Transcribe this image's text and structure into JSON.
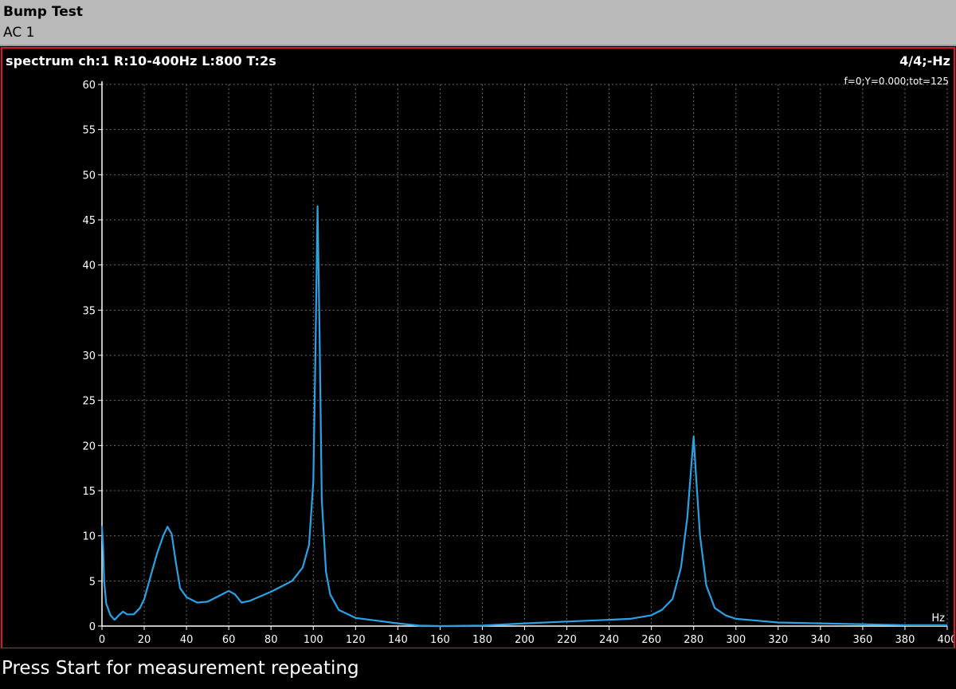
{
  "window": {
    "title": "Bump Test",
    "subtitle": "AC 1"
  },
  "panel": {
    "title": "spectrum ch:1 R:10-400Hz L:800 T:2s",
    "page_indicator": "4/4;-Hz",
    "cursor_readout": "f=0;Y=0.000;tot=125"
  },
  "status": {
    "message": "Press Start for measurement repeating"
  },
  "colors": {
    "title_bar": "#b9b9b9",
    "panel_border": "#d9182a",
    "trace": "#29a3e6",
    "grid": "#6a6a6a",
    "background": "#000000"
  },
  "chart_data": {
    "type": "line",
    "title": "",
    "xlabel": "Hz",
    "ylabel": "",
    "xlim": [
      0,
      400
    ],
    "ylim": [
      0,
      60
    ],
    "x_ticks": [
      0,
      20,
      40,
      60,
      80,
      100,
      120,
      140,
      160,
      180,
      200,
      220,
      240,
      260,
      280,
      300,
      320,
      340,
      360,
      380,
      400
    ],
    "y_ticks": [
      0,
      5,
      10,
      15,
      20,
      25,
      30,
      35,
      40,
      45,
      50,
      55,
      60
    ],
    "grid": true,
    "series": [
      {
        "name": "",
        "x": [
          0,
          0.5,
          1,
          2,
          4,
          6,
          8,
          10,
          12,
          15,
          18,
          20,
          23,
          26,
          29,
          31,
          33,
          35,
          37,
          40,
          45,
          50,
          55,
          60,
          63,
          66,
          70,
          75,
          80,
          85,
          90,
          95,
          98,
          100,
          101,
          102,
          103,
          104,
          106,
          108,
          112,
          120,
          130,
          140,
          150,
          160,
          180,
          200,
          220,
          240,
          250,
          260,
          265,
          270,
          274,
          277,
          279,
          280,
          281,
          283,
          286,
          290,
          295,
          300,
          310,
          320,
          340,
          360,
          380,
          400
        ],
        "y": [
          11.0,
          9.0,
          5.0,
          2.5,
          1.2,
          0.7,
          1.2,
          1.6,
          1.3,
          1.3,
          2.0,
          3.0,
          5.5,
          8.0,
          10.0,
          11.0,
          10.2,
          7.0,
          4.2,
          3.2,
          2.6,
          2.7,
          3.3,
          3.9,
          3.5,
          2.6,
          2.8,
          3.3,
          3.8,
          4.4,
          5.0,
          6.5,
          9.0,
          16.0,
          30.0,
          46.5,
          32.0,
          14.0,
          6.0,
          3.5,
          1.8,
          0.9,
          0.6,
          0.3,
          0.05,
          0.0,
          0.05,
          0.3,
          0.5,
          0.7,
          0.8,
          1.2,
          1.8,
          3.0,
          6.5,
          12.0,
          18.0,
          21.0,
          17.0,
          10.0,
          4.5,
          2.0,
          1.2,
          0.8,
          0.6,
          0.4,
          0.3,
          0.2,
          0.1,
          0.1
        ]
      }
    ]
  }
}
